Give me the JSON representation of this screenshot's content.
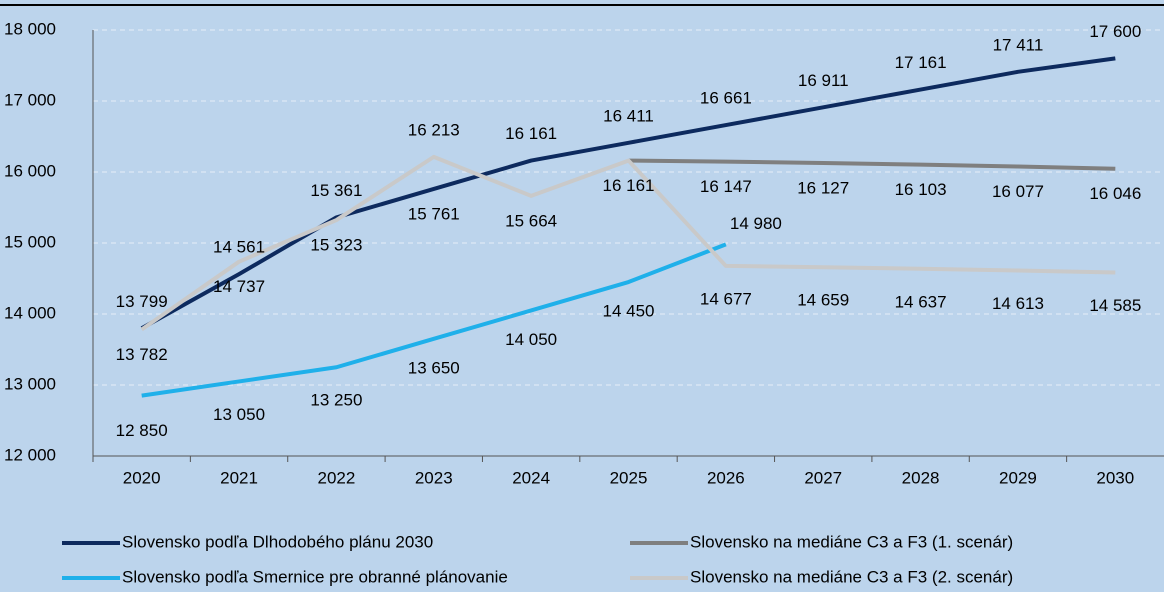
{
  "chart_data": {
    "type": "line",
    "categories": [
      "2020",
      "2021",
      "2022",
      "2023",
      "2024",
      "2025",
      "2026",
      "2027",
      "2028",
      "2029",
      "2030"
    ],
    "ylim": [
      12000,
      18000
    ],
    "yticks": [
      {
        "value": 12000,
        "label": "12 000"
      },
      {
        "value": 13000,
        "label": "13 000"
      },
      {
        "value": 14000,
        "label": "14 000"
      },
      {
        "value": 15000,
        "label": "15 000"
      },
      {
        "value": 16000,
        "label": "16 000"
      },
      {
        "value": 17000,
        "label": "17 000"
      },
      {
        "value": 18000,
        "label": "18 000"
      }
    ],
    "grid": true,
    "series": [
      {
        "name": "Slovensko podľa Dlhodobého plánu 2030",
        "color": "#0d2a5e",
        "values": [
          13799,
          14561,
          15361,
          15761,
          16161,
          16411,
          16661,
          16911,
          17161,
          17411,
          17600
        ],
        "value_labels": [
          "13 799",
          "14 561",
          "15 361",
          "15 761",
          "16 161",
          "16 411",
          "16 661",
          "16 911",
          "17 161",
          "17 411",
          "17 600"
        ]
      },
      {
        "name": "Slovensko na mediáne C3 a F3 (1. scenár)",
        "color": "#7f7f7f",
        "values": [
          null,
          null,
          null,
          null,
          null,
          16161,
          16147,
          16127,
          16103,
          16077,
          16046
        ],
        "value_labels": [
          null,
          null,
          null,
          null,
          null,
          "16 161",
          "16 147",
          "16 127",
          "16 103",
          "16 077",
          "16 046"
        ]
      },
      {
        "name": "Slovensko podľa Smernice pre obranné plánovanie",
        "color": "#1fb0ea",
        "values": [
          12850,
          13050,
          13250,
          13650,
          14050,
          14450,
          14980,
          null,
          null,
          null,
          null
        ],
        "value_labels": [
          "12 850",
          "13 050",
          "13 250",
          "13 650",
          "14 050",
          "14 450",
          "14 980",
          null,
          null,
          null,
          null
        ]
      },
      {
        "name": "Slovensko na mediáne C3 a F3 (2. scenár)",
        "color": "#c9c9c9",
        "values": [
          13782,
          14737,
          15323,
          16213,
          15664,
          16161,
          14677,
          14659,
          14637,
          14613,
          14585
        ],
        "value_labels": [
          "13 782",
          "14 737",
          "15 323",
          "16 213",
          "15 664",
          "16 161",
          "14 677",
          "14 659",
          "14 637",
          "14 613",
          "14 585"
        ]
      }
    ]
  }
}
